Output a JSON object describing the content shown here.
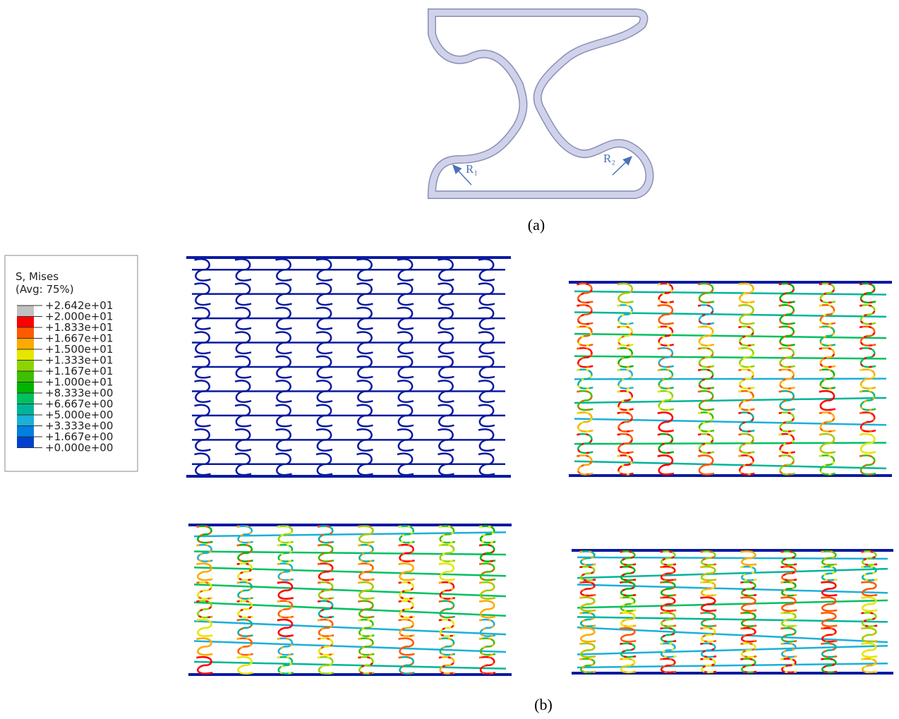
{
  "figure": {
    "unit_cell": {
      "r1_label": "R₁",
      "r2_label": "R₂",
      "caption": "(a)"
    },
    "legend": {
      "title": "S, Mises",
      "subtitle": "(Avg: 75%)",
      "labels": [
        "+2.642e+01",
        "+2.000e+01",
        "+1.833e+01",
        "+1.667e+01",
        "+1.500e+01",
        "+1.333e+01",
        "+1.167e+01",
        "+1.000e+01",
        "+8.333e+00",
        "+6.667e+00",
        "+5.000e+00",
        "+3.333e+00",
        "+1.667e+00",
        "+0.000e+00"
      ],
      "colors": [
        "#c0c0c0",
        "#ff0000",
        "#ff5a00",
        "#ffaa00",
        "#e6e600",
        "#8cd400",
        "#3cc000",
        "#00b400",
        "#00c060",
        "#00b49a",
        "#1ab0d8",
        "#0080e0",
        "#0040d0",
        "#0010b0"
      ]
    },
    "caption": "(b)"
  }
}
